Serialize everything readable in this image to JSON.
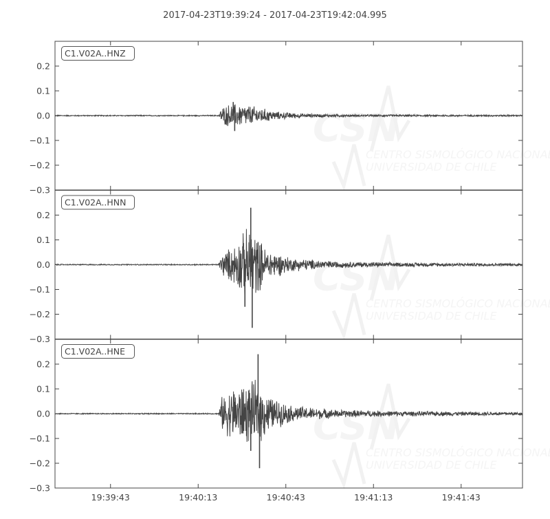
{
  "chart_data": {
    "type": "line",
    "title": "2017-04-23T19:39:24  -  2017-04-23T19:42:04.995",
    "xlim": [
      "19:39:24",
      "19:42:04.995"
    ],
    "x_ticks": [
      "19:39:43",
      "19:40:13",
      "19:40:43",
      "19:41:13",
      "19:41:43"
    ],
    "ylim": [
      -0.3,
      0.3
    ],
    "y_ticks": [
      "0.2",
      "0.1",
      "0.0",
      "−0.1",
      "−0.2",
      "−0.3"
    ],
    "line_color": "#444444",
    "grid": false,
    "watermark": {
      "logo": "CSN",
      "line1": "CENTRO SISMOLÓGICO NACIONAL",
      "line2": "UNIVERSIDAD DE CHILE"
    },
    "series": [
      {
        "name": "C1.V02A..HNZ",
        "envelope_time": [
          "19:39:24",
          "19:40:20",
          "19:40:21",
          "19:40:24",
          "19:40:30",
          "19:40:34",
          "19:40:40",
          "19:40:50",
          "19:41:10",
          "19:42:05"
        ],
        "envelope_amp": [
          0.002,
          0.002,
          0.03,
          0.045,
          0.04,
          0.03,
          0.015,
          0.007,
          0.004,
          0.003
        ],
        "peaks": [
          {
            "time": "19:40:25",
            "value": 0.055
          },
          {
            "time": "19:40:25.5",
            "value": -0.062
          }
        ]
      },
      {
        "name": "C1.V02A..HNN",
        "envelope_time": [
          "19:39:24",
          "19:40:20",
          "19:40:21",
          "19:40:25",
          "19:40:31",
          "19:40:36",
          "19:40:45",
          "19:41:00",
          "19:41:20",
          "19:42:05"
        ],
        "envelope_amp": [
          0.002,
          0.002,
          0.04,
          0.07,
          0.15,
          0.06,
          0.025,
          0.012,
          0.008,
          0.005
        ],
        "peaks": [
          {
            "time": "19:40:31",
            "value": 0.23
          },
          {
            "time": "19:40:31.5",
            "value": -0.255
          },
          {
            "time": "19:40:29",
            "value": -0.17
          }
        ]
      },
      {
        "name": "C1.V02A..HNE",
        "envelope_time": [
          "19:39:24",
          "19:40:20",
          "19:40:21",
          "19:40:25",
          "19:40:33",
          "19:40:38",
          "19:40:45",
          "19:41:00",
          "19:41:20",
          "19:42:05"
        ],
        "envelope_amp": [
          0.002,
          0.002,
          0.06,
          0.1,
          0.12,
          0.06,
          0.03,
          0.015,
          0.01,
          0.006
        ],
        "peaks": [
          {
            "time": "19:40:33.5",
            "value": 0.24
          },
          {
            "time": "19:40:34",
            "value": -0.22
          },
          {
            "time": "19:40:31",
            "value": -0.15
          }
        ]
      }
    ]
  }
}
